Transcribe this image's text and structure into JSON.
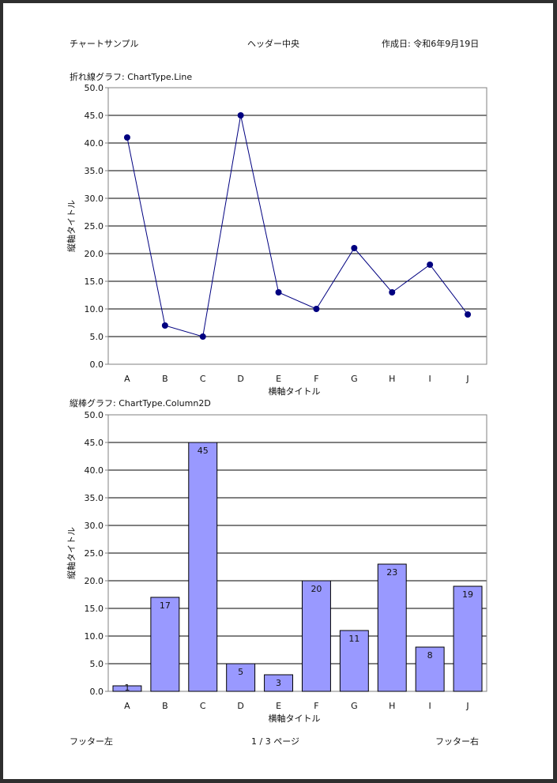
{
  "header": {
    "left": "チャートサンプル",
    "center": "ヘッダー中央",
    "right": "作成日: 令和6年9月19日"
  },
  "footer": {
    "left": "フッター左",
    "center": "1 / 3 ページ",
    "right": "フッター右"
  },
  "colors": {
    "line": "#000080",
    "bar_fill": "#9999ff",
    "bar_stroke": "#000000",
    "grid": "#000000",
    "axis": "#808080"
  },
  "chart_data": [
    {
      "type": "line",
      "title": "折れ線グラフ: ChartType.Line",
      "xlabel": "横軸タイトル",
      "ylabel": "縦軸タイトル",
      "categories": [
        "A",
        "B",
        "C",
        "D",
        "E",
        "F",
        "G",
        "H",
        "I",
        "J"
      ],
      "values": [
        41,
        7,
        5,
        45,
        13,
        10,
        21,
        13,
        18,
        9
      ],
      "ylim": [
        0,
        50
      ],
      "ytick_step": 5,
      "grid": true,
      "show_values": false
    },
    {
      "type": "bar",
      "title": "縦棒グラフ: ChartType.Column2D",
      "xlabel": "横軸タイトル",
      "ylabel": "縦軸タイトル",
      "categories": [
        "A",
        "B",
        "C",
        "D",
        "E",
        "F",
        "G",
        "H",
        "I",
        "J"
      ],
      "values": [
        1,
        17,
        45,
        5,
        3,
        20,
        11,
        23,
        8,
        19
      ],
      "ylim": [
        0,
        50
      ],
      "ytick_step": 5,
      "grid": true,
      "show_values": true
    }
  ]
}
